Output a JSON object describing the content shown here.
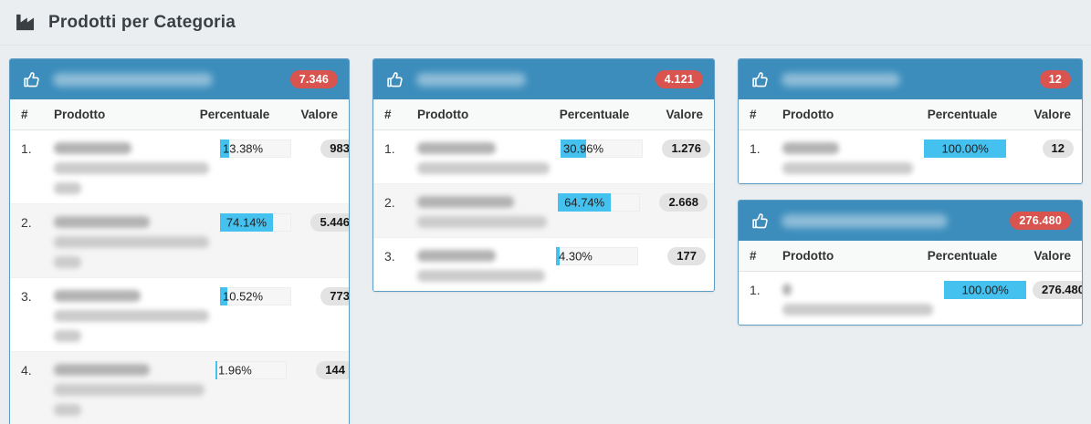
{
  "page": {
    "title": "Prodotti per Categoria",
    "title_icon": "industry-icon"
  },
  "colors": {
    "panel_header_blue": "#3c8dbc",
    "total_badge_red": "#d9534f",
    "bar_fill_cyan": "#45c1ef",
    "value_pill_gray": "#e3e3e3",
    "page_background": "#eaeef1"
  },
  "columns": {
    "index": "#",
    "product": "Prodotto",
    "percent": "Percentuale",
    "value": "Valore"
  },
  "panels": [
    {
      "title_redacted": true,
      "title_blur_width": 175,
      "total_badge": "7.346",
      "rows": [
        {
          "index": "1.",
          "percent": 13.38,
          "percent_label": "13.38%",
          "value": "983",
          "name_redacted": true,
          "name_blur_lines": [
            85,
            170,
            30
          ]
        },
        {
          "index": "2.",
          "percent": 74.14,
          "percent_label": "74.14%",
          "value": "5.446",
          "name_redacted": true,
          "name_blur_lines": [
            105,
            170,
            30
          ]
        },
        {
          "index": "3.",
          "percent": 10.52,
          "percent_label": "10.52%",
          "value": "773",
          "name_redacted": true,
          "name_blur_lines": [
            95,
            170,
            30
          ]
        },
        {
          "index": "4.",
          "percent": 1.96,
          "percent_label": "1.96%",
          "value": "144",
          "name_redacted": true,
          "name_blur_lines": [
            105,
            165,
            30
          ]
        }
      ]
    },
    {
      "title_redacted": true,
      "title_blur_width": 120,
      "total_badge": "4.121",
      "rows": [
        {
          "index": "1.",
          "percent": 30.96,
          "percent_label": "30.96%",
          "value": "1.276",
          "name_redacted": true,
          "name_blur_lines": [
            86,
            145
          ]
        },
        {
          "index": "2.",
          "percent": 64.74,
          "percent_label": "64.74%",
          "value": "2.668",
          "name_redacted": true,
          "name_blur_lines": [
            106,
            142
          ]
        },
        {
          "index": "3.",
          "percent": 4.3,
          "percent_label": "4.30%",
          "value": "177",
          "name_redacted": true,
          "name_blur_lines": [
            86,
            140
          ]
        }
      ]
    },
    {
      "title_redacted": true,
      "title_blur_width": 130,
      "total_badge": "12",
      "rows": [
        {
          "index": "1.",
          "percent": 100,
          "percent_label": "100.00%",
          "value": "12",
          "name_redacted": true,
          "name_blur_lines": [
            62,
            143
          ]
        }
      ]
    },
    {
      "title_redacted": true,
      "title_blur_width": 182,
      "total_badge": "276.480",
      "rows": [
        {
          "index": "1.",
          "percent": 100,
          "percent_label": "100.00%",
          "value": "276.480",
          "name_redacted": true,
          "name_blur_lines": [
            10,
            165
          ]
        }
      ]
    }
  ]
}
